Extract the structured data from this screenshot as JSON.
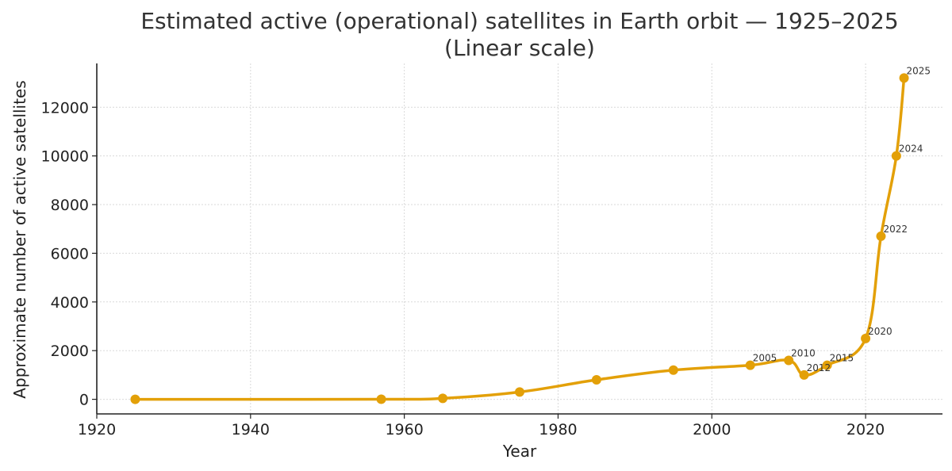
{
  "chart_data": {
    "type": "line",
    "title_line1": "Estimated active (operational) satellites in Earth orbit — 1925–2025",
    "title_line2": "(Linear scale)",
    "xlabel": "Year",
    "ylabel": "Approximate number of active satellites",
    "xlim": [
      1920,
      2030
    ],
    "ylim": [
      -600,
      13800
    ],
    "x_ticks": [
      1920,
      1940,
      1960,
      1980,
      2000,
      2020
    ],
    "y_ticks": [
      0,
      2000,
      4000,
      6000,
      8000,
      10000,
      12000
    ],
    "grid": true,
    "color": "#E3A008",
    "series": [
      {
        "x": [
          1925,
          1957,
          1965,
          1975,
          1985,
          1995,
          2005,
          2010,
          2012,
          2015,
          2020,
          2022,
          2024,
          2025
        ],
        "values": [
          0,
          1,
          40,
          300,
          800,
          1200,
          1400,
          1600,
          1000,
          1400,
          2500,
          6700,
          10000,
          13200
        ]
      }
    ],
    "annotations": [
      {
        "year": 2005,
        "text": "2005"
      },
      {
        "year": 2010,
        "text": "2010"
      },
      {
        "year": 2012,
        "text": "2012"
      },
      {
        "year": 2015,
        "text": "2015"
      },
      {
        "year": 2020,
        "text": "2020"
      },
      {
        "year": 2022,
        "text": "2022"
      },
      {
        "year": 2024,
        "text": "2024"
      },
      {
        "year": 2025,
        "text": "2025"
      }
    ]
  }
}
